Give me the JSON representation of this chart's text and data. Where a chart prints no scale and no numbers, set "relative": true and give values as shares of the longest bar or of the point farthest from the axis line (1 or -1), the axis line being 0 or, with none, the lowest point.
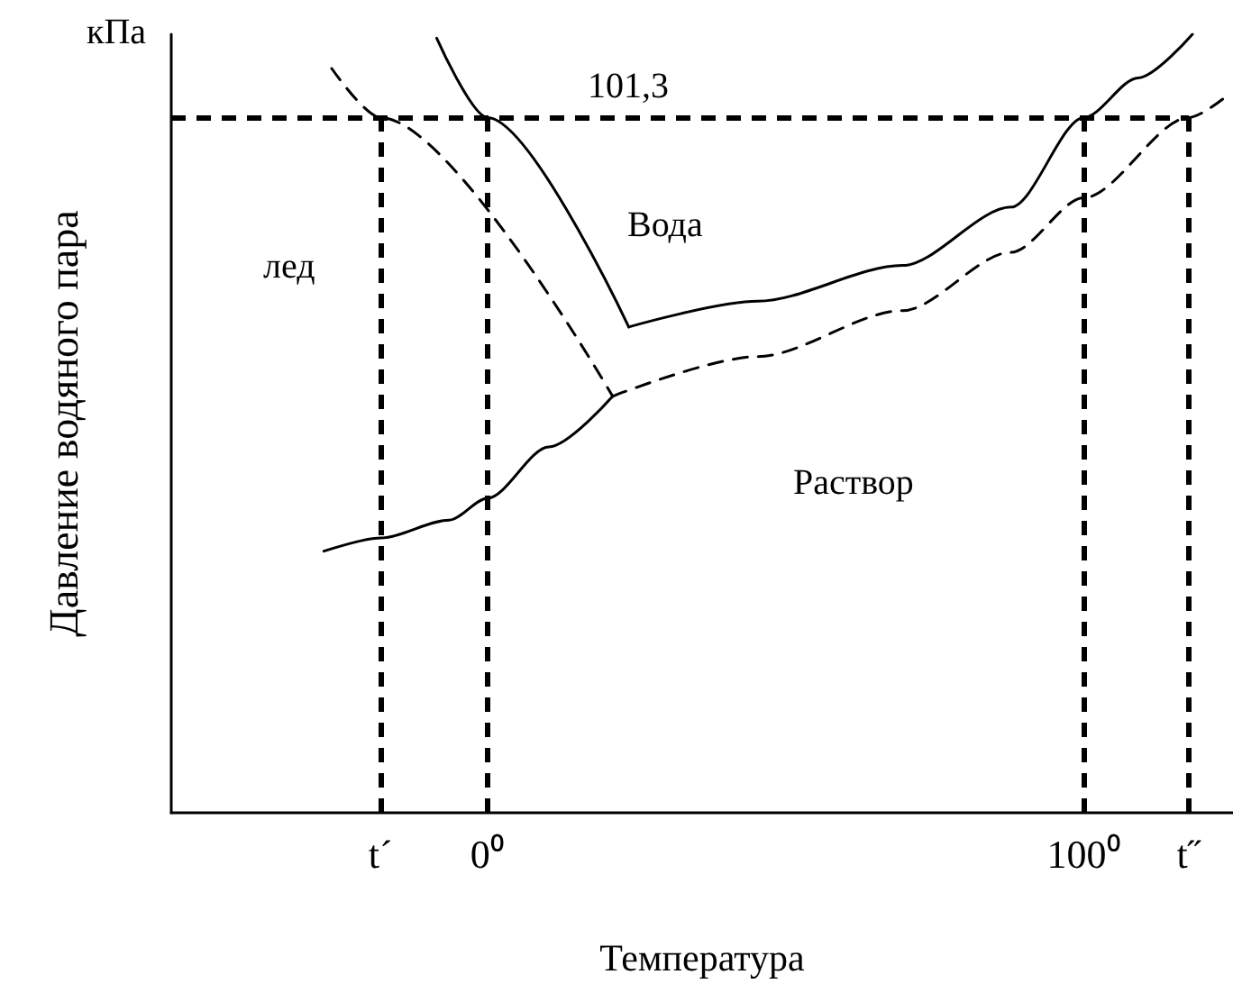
{
  "chart_data": {
    "type": "line",
    "relative": true,
    "xlabel": "Температура",
    "ylabel": "Давление водяного пара",
    "annotations": [
      "кПа",
      "лед",
      "Вода",
      "Раствор",
      "101,3"
    ],
    "xlim": [
      -53,
      125
    ],
    "xticks": [
      {
        "value": -17.9,
        "label": "t´"
      },
      {
        "value": 0,
        "label": "0⁰"
      },
      {
        "value": 100,
        "label": "100⁰"
      },
      {
        "value": 117.6,
        "label": "t˝"
      }
    ],
    "grid": false,
    "marker": "none",
    "series": [
      {
        "color": "#000000",
        "line_style": "solid",
        "x": [
          23.7,
          45.3,
          69.6,
          87.8,
          100,
          109.1,
          118.2
        ],
        "values": [
          0.624,
          0.657,
          0.703,
          0.778,
          0.893,
          0.944,
          1
        ]
      },
      {
        "color": "#000000",
        "line_style": "solid",
        "x": [
          -8.5,
          0,
          23.7
        ],
        "values": [
          0.995,
          0.893,
          0.624
        ]
      },
      {
        "color": "#000000",
        "line_style": "solid",
        "x": [
          -27.4,
          -17.9,
          -6.4,
          0,
          10.3,
          21
        ],
        "values": [
          0.336,
          0.353,
          0.376,
          0.404,
          0.47,
          0.535
        ]
      },
      {
        "color": "#000000",
        "line_style": "dashed",
        "x": [
          21,
          45.3,
          69.6,
          87.8,
          100,
          117.6,
          124
        ],
        "values": [
          0.535,
          0.586,
          0.645,
          0.72,
          0.79,
          0.893,
          0.921
        ]
      },
      {
        "color": "#000000",
        "line_style": "dashed",
        "x": [
          -26.1,
          -17.9,
          21
        ],
        "values": [
          0.956,
          0.893,
          0.535
        ]
      }
    ],
    "ref_lines": [
      {
        "axis": "y",
        "value": 0.893,
        "color": "#000000",
        "line_style": "dashed"
      },
      {
        "axis": "x",
        "value": -17.9,
        "color": "#000000",
        "line_style": "dashed"
      },
      {
        "axis": "x",
        "value": 0,
        "color": "#000000",
        "line_style": "dashed"
      },
      {
        "axis": "x",
        "value": 100,
        "color": "#000000",
        "line_style": "dashed"
      },
      {
        "axis": "x",
        "value": 117.6,
        "color": "#000000",
        "line_style": "dashed"
      }
    ]
  }
}
